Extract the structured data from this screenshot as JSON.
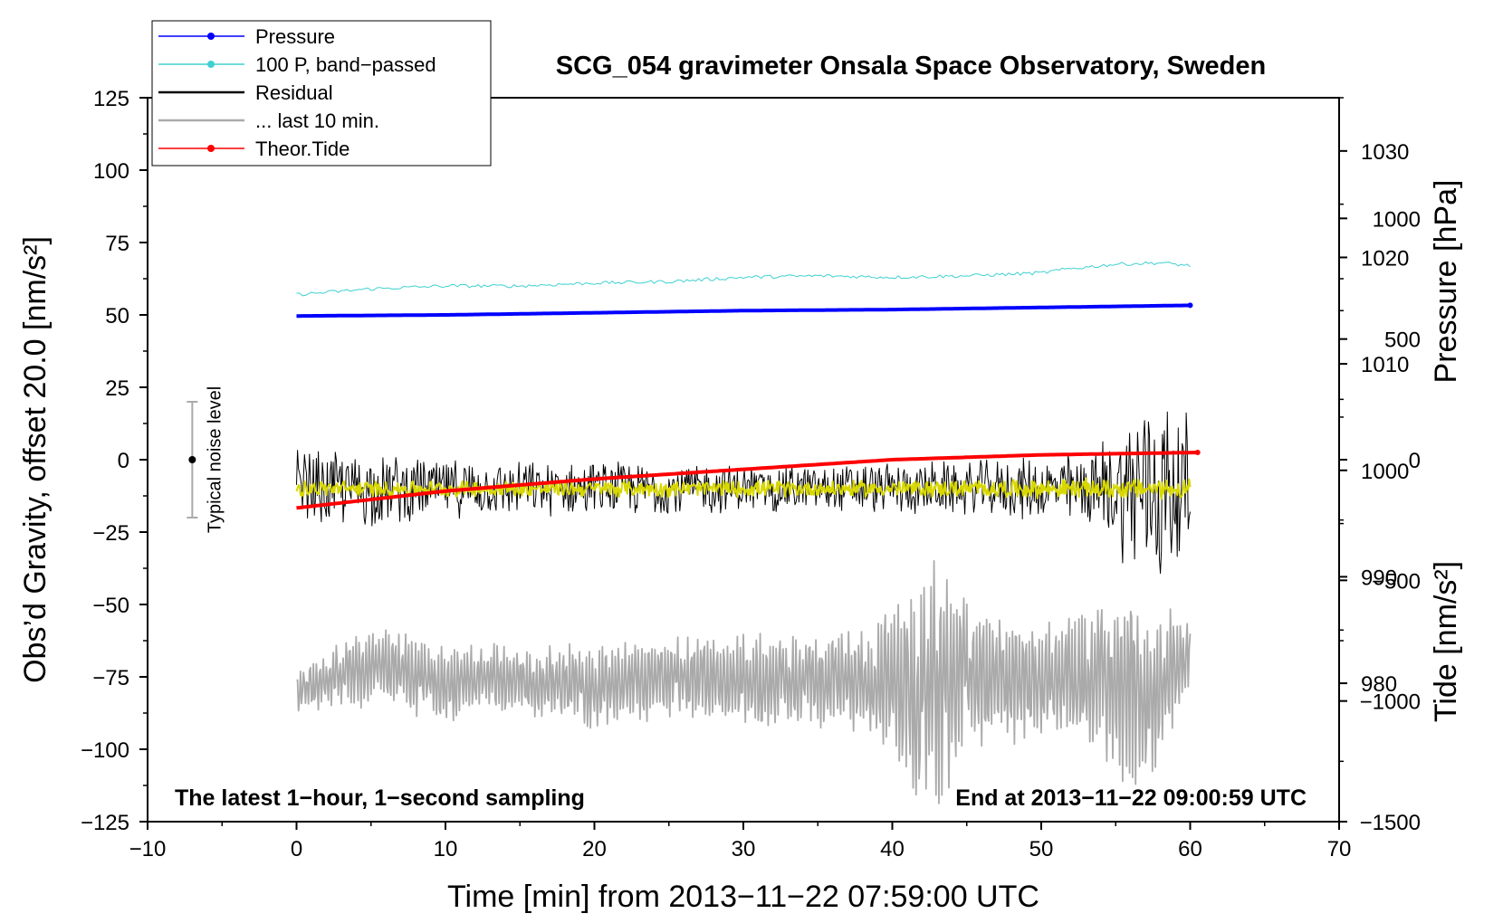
{
  "chart_data": {
    "type": "line",
    "title": "SCG_054 gravimeter Onsala Space Observatory, Sweden",
    "xlabel": "Time [min] from 2013−11−22 07:59:00 UTC",
    "ylabel_left": "Obs’d Gravity, offset 20.0 [nm/s²]",
    "ylabel_right_pressure": "Pressure [hPa]",
    "ylabel_right_tide": "Tide [nm/s²]",
    "xlim": [
      -10,
      70
    ],
    "ylim": [
      -125,
      125
    ],
    "pressure_lim": [
      967,
      1035
    ],
    "tide_lim": [
      -1500,
      1500
    ],
    "grid": false,
    "legend_position": "top-left",
    "x_ticks": [
      "−10",
      "0",
      "10",
      "20",
      "30",
      "40",
      "50",
      "60",
      "70"
    ],
    "left_ticks": [
      {
        "v": 125,
        "label": "125"
      },
      {
        "v": 100,
        "label": "100"
      },
      {
        "v": 75,
        "label": "75"
      },
      {
        "v": 50,
        "label": "50"
      },
      {
        "v": 25,
        "label": "25"
      },
      {
        "v": 0,
        "label": "0"
      },
      {
        "v": -25,
        "label": "−25"
      },
      {
        "v": -50,
        "label": "−50"
      },
      {
        "v": -75,
        "label": "−75"
      },
      {
        "v": -100,
        "label": "−100"
      },
      {
        "v": -125,
        "label": "−125"
      }
    ],
    "pressure_ticks": [
      {
        "v": 980,
        "label": "980"
      },
      {
        "v": 990,
        "label": "990"
      },
      {
        "v": 1000,
        "label": "1000"
      },
      {
        "v": 1010,
        "label": "1010"
      },
      {
        "v": 1020,
        "label": "1020"
      },
      {
        "v": 1030,
        "label": "1030"
      }
    ],
    "tide_ticks": [
      {
        "v": 1000,
        "label": "1000"
      },
      {
        "v": 500,
        "label": "500"
      },
      {
        "v": 0,
        "label": "0"
      },
      {
        "v": -500,
        "label": "−500"
      },
      {
        "v": -1000,
        "label": "−1000"
      },
      {
        "v": -1500,
        "label": "−1500"
      }
    ],
    "series": [
      {
        "name": "Pressure",
        "axis": "pressure",
        "color": "#0000ff",
        "x": [
          0,
          10,
          20,
          30,
          40,
          50,
          60
        ],
        "values": [
          1014.5,
          1014.6,
          1014.8,
          1015.0,
          1015.1,
          1015.3,
          1015.5
        ]
      },
      {
        "name": "100 P, band−passed",
        "axis": "left",
        "color": "#40d0d0",
        "x": [
          0,
          5,
          10,
          15,
          20,
          25,
          30,
          35,
          40,
          45,
          50,
          52,
          55,
          58,
          60
        ],
        "values": [
          57,
          59,
          60,
          60,
          61,
          61.5,
          63,
          63.5,
          63,
          63.5,
          64.5,
          66,
          67.5,
          68,
          67
        ]
      },
      {
        "name": "Residual",
        "axis": "left",
        "color": "#000000",
        "x": [
          0,
          5,
          10,
          15,
          20,
          25,
          30,
          35,
          40,
          45,
          50,
          53,
          55,
          57,
          58,
          59,
          60
        ],
        "values": [
          -10,
          -10,
          -10,
          -10,
          -10,
          -10,
          -10,
          -10,
          -10,
          -10,
          -10,
          -10,
          -10,
          -10,
          -10,
          -10,
          -10
        ],
        "envelope": [
          15,
          14,
          11,
          10,
          10,
          10,
          9,
          9,
          10,
          10,
          12,
          14,
          22,
          40,
          38,
          35,
          25
        ]
      },
      {
        "name": "... last 10 min.",
        "axis": "left",
        "color": "#aaaaaa",
        "x": [
          0,
          3,
          6,
          10,
          15,
          20,
          25,
          30,
          35,
          38,
          40,
          42,
          43,
          45,
          48,
          50,
          53,
          55,
          56,
          58,
          60
        ],
        "values": [
          -80,
          -74,
          -72,
          -77,
          -76,
          -78,
          -75,
          -77,
          -76,
          -75,
          -77,
          -80,
          -77,
          -75,
          -76,
          -77,
          -76,
          -78,
          -80,
          -76,
          -68
        ],
        "envelope": [
          8,
          12,
          15,
          14,
          13,
          16,
          16,
          17,
          17,
          20,
          30,
          45,
          45,
          28,
          24,
          22,
          26,
          32,
          38,
          30,
          12
        ]
      },
      {
        "name": "Theor.Tide",
        "axis": "tide",
        "color": "#ff0000",
        "x": [
          0,
          10,
          20,
          30,
          40,
          50,
          60.5
        ],
        "values": [
          -200,
          -130,
          -80,
          -40,
          0,
          20,
          30
        ]
      },
      {
        "name": "",
        "axis": "left",
        "color": "#d8d800",
        "x": [
          0,
          20,
          40,
          60
        ],
        "values": [
          -10,
          -10,
          -10,
          -10
        ],
        "envelope": [
          3,
          3,
          3,
          4
        ]
      }
    ],
    "annotations": [
      "The latest 1−hour, 1−second sampling",
      "End at 2013−11−22 09:00:59 UTC",
      "Typical noise level"
    ],
    "noise_bar": {
      "x": -7,
      "center": 0,
      "half_range": 20
    }
  }
}
